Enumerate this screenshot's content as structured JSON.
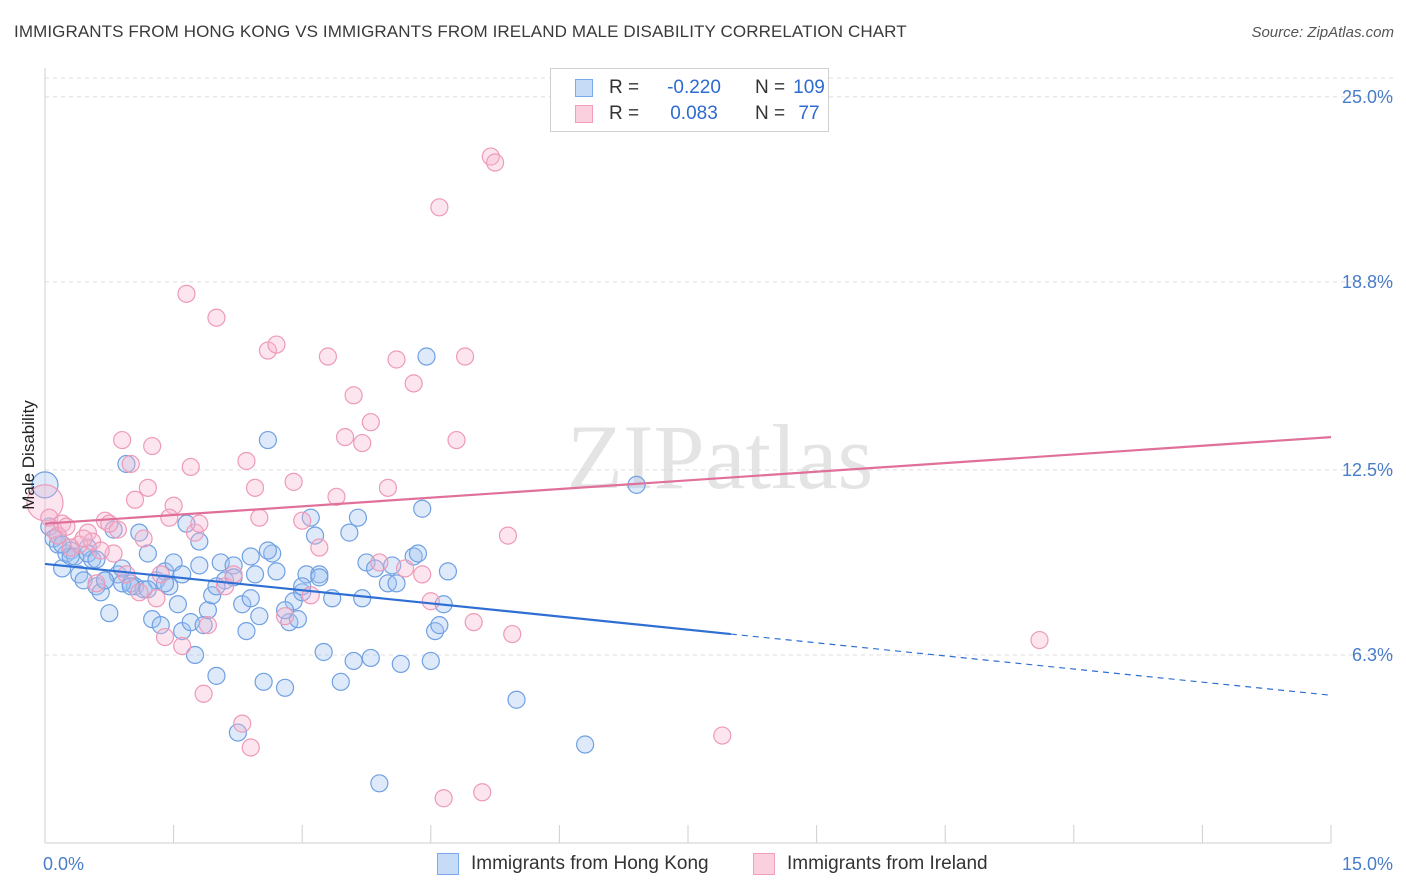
{
  "title": "IMMIGRANTS FROM HONG KONG VS IMMIGRANTS FROM IRELAND MALE DISABILITY CORRELATION CHART",
  "source": "Source: ZipAtlas.com",
  "watermark": "ZIPatlas",
  "legend": {
    "rows": [
      {
        "r_label": "R =",
        "r_value": "-0.220",
        "n_label": "N =",
        "n_value": "109",
        "color": "#7aaae8"
      },
      {
        "r_label": "R =",
        "r_value": "0.083",
        "n_label": "N =",
        "n_value": "77",
        "color": "#f0a0bb"
      }
    ]
  },
  "chart_data": {
    "type": "scatter",
    "title": "IMMIGRANTS FROM HONG KONG VS IMMIGRANTS FROM IRELAND MALE DISABILITY CORRELATION CHART",
    "xlabel": "",
    "ylabel": "Male Disability",
    "xlim": [
      0,
      15
    ],
    "ylim": [
      0,
      25.9
    ],
    "x_tick_labels": [
      "0.0%",
      "15.0%"
    ],
    "y_ticks": [
      6.3,
      12.5,
      18.8,
      25.0
    ],
    "y_tick_labels": [
      "6.3%",
      "12.5%",
      "18.8%",
      "25.0%"
    ],
    "grid": "horizontal dashed",
    "legend_position": "top-center",
    "series": [
      {
        "name": "Immigrants from Hong Kong",
        "color": "#7aaae8",
        "trend": {
          "x0": 0,
          "y0": 9.35,
          "x1": 8.0,
          "y1": 7.0,
          "dash_to_x": 15,
          "dash_to_y": 4.95
        },
        "points": [
          [
            0.0,
            12.0
          ],
          [
            0.05,
            10.6
          ],
          [
            0.1,
            10.2
          ],
          [
            0.15,
            10.0
          ],
          [
            0.2,
            9.2
          ],
          [
            0.25,
            9.7
          ],
          [
            0.3,
            9.8
          ],
          [
            0.35,
            9.6
          ],
          [
            0.4,
            9.0
          ],
          [
            0.45,
            8.8
          ],
          [
            0.5,
            9.9
          ],
          [
            0.55,
            9.5
          ],
          [
            0.6,
            8.6
          ],
          [
            0.65,
            8.4
          ],
          [
            0.7,
            8.8
          ],
          [
            0.75,
            7.7
          ],
          [
            0.8,
            10.5
          ],
          [
            0.85,
            9.0
          ],
          [
            0.9,
            9.2
          ],
          [
            0.95,
            12.7
          ],
          [
            1.0,
            8.7
          ],
          [
            1.05,
            8.6
          ],
          [
            1.1,
            10.4
          ],
          [
            1.15,
            8.5
          ],
          [
            1.2,
            9.7
          ],
          [
            1.25,
            7.5
          ],
          [
            1.3,
            8.8
          ],
          [
            1.35,
            7.3
          ],
          [
            1.4,
            9.1
          ],
          [
            1.45,
            8.6
          ],
          [
            1.5,
            9.4
          ],
          [
            1.55,
            8.0
          ],
          [
            1.6,
            7.1
          ],
          [
            1.65,
            10.7
          ],
          [
            1.7,
            7.4
          ],
          [
            1.75,
            6.3
          ],
          [
            1.8,
            10.1
          ],
          [
            1.85,
            7.3
          ],
          [
            1.9,
            7.8
          ],
          [
            1.95,
            8.3
          ],
          [
            2.0,
            5.6
          ],
          [
            2.05,
            9.4
          ],
          [
            2.1,
            8.8
          ],
          [
            2.2,
            9.3
          ],
          [
            2.25,
            3.7
          ],
          [
            2.3,
            8.0
          ],
          [
            2.35,
            7.1
          ],
          [
            2.4,
            9.6
          ],
          [
            2.45,
            9.0
          ],
          [
            2.5,
            7.6
          ],
          [
            2.55,
            5.4
          ],
          [
            2.6,
            13.5
          ],
          [
            2.65,
            9.7
          ],
          [
            2.7,
            9.1
          ],
          [
            2.8,
            5.2
          ],
          [
            2.85,
            7.4
          ],
          [
            2.9,
            8.1
          ],
          [
            2.95,
            7.5
          ],
          [
            3.0,
            8.4
          ],
          [
            3.05,
            9.0
          ],
          [
            3.1,
            10.9
          ],
          [
            3.15,
            10.3
          ],
          [
            3.2,
            9.0
          ],
          [
            3.25,
            6.4
          ],
          [
            3.35,
            8.2
          ],
          [
            3.45,
            5.4
          ],
          [
            3.55,
            10.4
          ],
          [
            3.6,
            6.1
          ],
          [
            3.65,
            10.9
          ],
          [
            3.7,
            8.2
          ],
          [
            3.75,
            9.4
          ],
          [
            3.8,
            6.2
          ],
          [
            3.85,
            9.2
          ],
          [
            3.9,
            2.0
          ],
          [
            4.0,
            8.7
          ],
          [
            4.05,
            9.3
          ],
          [
            4.1,
            8.7
          ],
          [
            4.15,
            6.0
          ],
          [
            4.3,
            9.6
          ],
          [
            4.35,
            9.7
          ],
          [
            4.4,
            11.2
          ],
          [
            4.45,
            16.3
          ],
          [
            4.5,
            6.1
          ],
          [
            4.55,
            7.1
          ],
          [
            4.6,
            7.3
          ],
          [
            4.65,
            8.0
          ],
          [
            4.7,
            9.1
          ],
          [
            5.5,
            4.8
          ],
          [
            6.3,
            3.3
          ],
          [
            6.9,
            12.0
          ],
          [
            0.3,
            9.6
          ],
          [
            0.5,
            9.7
          ],
          [
            0.6,
            9.5
          ],
          [
            0.7,
            8.8
          ],
          [
            0.9,
            8.7
          ],
          [
            1.0,
            8.6
          ],
          [
            1.2,
            8.5
          ],
          [
            1.4,
            8.7
          ],
          [
            1.6,
            9.0
          ],
          [
            1.8,
            9.3
          ],
          [
            2.0,
            8.6
          ],
          [
            2.2,
            8.9
          ],
          [
            2.4,
            8.2
          ],
          [
            2.6,
            9.8
          ],
          [
            2.8,
            7.8
          ],
          [
            3.0,
            8.6
          ],
          [
            3.2,
            8.9
          ],
          [
            0.15,
            10.3
          ],
          [
            0.2,
            10.0
          ]
        ]
      },
      {
        "name": "Immigrants from Ireland",
        "color": "#f0a0bb",
        "trend": {
          "x0": 0,
          "y0": 10.7,
          "x1": 15,
          "y1": 13.6
        },
        "points": [
          [
            0.0,
            11.4
          ],
          [
            0.05,
            10.9
          ],
          [
            0.1,
            10.5
          ],
          [
            0.15,
            10.3
          ],
          [
            0.2,
            10.7
          ],
          [
            0.3,
            9.9
          ],
          [
            0.4,
            10.0
          ],
          [
            0.5,
            10.4
          ],
          [
            0.55,
            10.1
          ],
          [
            0.6,
            8.7
          ],
          [
            0.7,
            10.8
          ],
          [
            0.8,
            9.7
          ],
          [
            0.85,
            10.5
          ],
          [
            0.9,
            13.5
          ],
          [
            0.95,
            9.0
          ],
          [
            1.0,
            12.7
          ],
          [
            1.05,
            11.5
          ],
          [
            1.1,
            8.4
          ],
          [
            1.2,
            11.9
          ],
          [
            1.25,
            13.3
          ],
          [
            1.3,
            8.2
          ],
          [
            1.4,
            6.9
          ],
          [
            1.5,
            11.3
          ],
          [
            1.6,
            6.6
          ],
          [
            1.65,
            18.4
          ],
          [
            1.7,
            12.6
          ],
          [
            1.75,
            10.4
          ],
          [
            1.8,
            10.7
          ],
          [
            1.85,
            5.0
          ],
          [
            1.9,
            7.3
          ],
          [
            2.0,
            17.6
          ],
          [
            2.1,
            8.6
          ],
          [
            2.2,
            9.0
          ],
          [
            2.3,
            4.0
          ],
          [
            2.35,
            12.8
          ],
          [
            2.4,
            3.2
          ],
          [
            2.45,
            11.9
          ],
          [
            2.5,
            10.9
          ],
          [
            2.6,
            16.5
          ],
          [
            2.7,
            16.7
          ],
          [
            2.8,
            7.6
          ],
          [
            2.9,
            12.1
          ],
          [
            3.0,
            10.8
          ],
          [
            3.1,
            8.3
          ],
          [
            3.2,
            9.9
          ],
          [
            3.3,
            16.3
          ],
          [
            3.4,
            11.6
          ],
          [
            3.5,
            13.6
          ],
          [
            3.6,
            15.0
          ],
          [
            3.7,
            13.4
          ],
          [
            3.8,
            14.1
          ],
          [
            3.9,
            9.4
          ],
          [
            4.0,
            11.9
          ],
          [
            4.1,
            16.2
          ],
          [
            4.2,
            9.2
          ],
          [
            4.3,
            15.4
          ],
          [
            4.4,
            9.0
          ],
          [
            4.5,
            8.1
          ],
          [
            4.6,
            21.3
          ],
          [
            4.65,
            1.5
          ],
          [
            4.8,
            13.5
          ],
          [
            4.9,
            16.3
          ],
          [
            5.0,
            7.4
          ],
          [
            5.1,
            1.7
          ],
          [
            5.2,
            23.0
          ],
          [
            5.25,
            22.8
          ],
          [
            5.4,
            10.3
          ],
          [
            5.45,
            7.0
          ],
          [
            7.9,
            3.6
          ],
          [
            11.6,
            6.8
          ],
          [
            0.25,
            10.6
          ],
          [
            0.45,
            10.2
          ],
          [
            0.65,
            9.8
          ],
          [
            0.75,
            10.7
          ],
          [
            1.15,
            10.2
          ],
          [
            1.35,
            9.0
          ],
          [
            1.45,
            10.9
          ]
        ]
      }
    ]
  },
  "bottom_legend": [
    {
      "label": "Immigrants from Hong Kong",
      "color": "#7aaae8"
    },
    {
      "label": "Immigrants from Ireland",
      "color": "#f0a0bb"
    }
  ]
}
